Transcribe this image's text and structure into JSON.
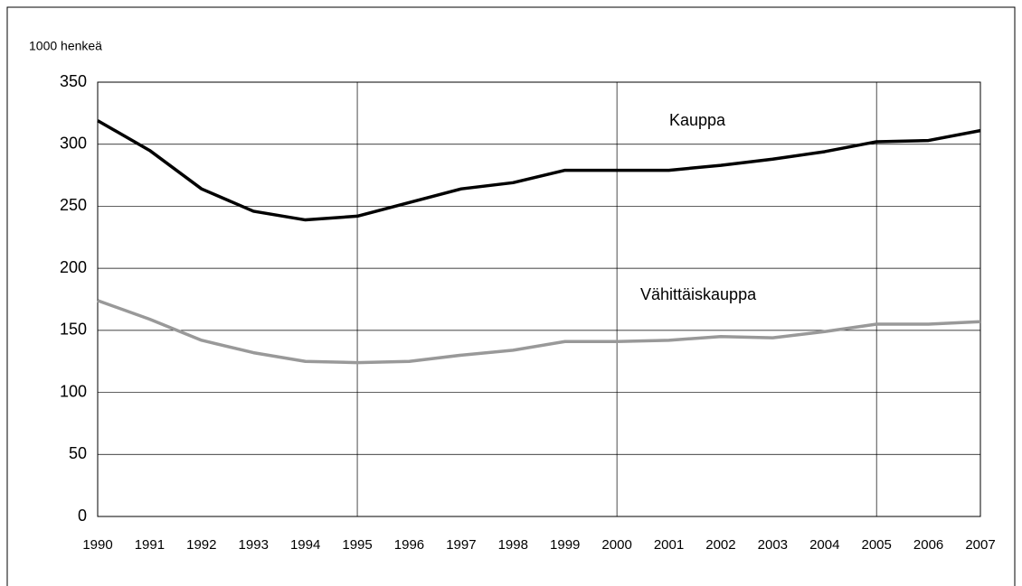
{
  "chart_data": {
    "type": "line",
    "y_axis_label": "1000 henkeä",
    "x": [
      1990,
      1991,
      1992,
      1993,
      1994,
      1995,
      1996,
      1997,
      1998,
      1999,
      2000,
      2001,
      2002,
      2003,
      2004,
      2005,
      2006,
      2007
    ],
    "series": [
      {
        "name": "Kauppa",
        "color": "#000000",
        "values": [
          319,
          295,
          264,
          246,
          239,
          242,
          253,
          264,
          269,
          279,
          279,
          279,
          283,
          288,
          294,
          302,
          303,
          311
        ]
      },
      {
        "name": "Vähittäiskauppa",
        "color": "#999999",
        "values": [
          174,
          159,
          142,
          132,
          125,
          124,
          125,
          130,
          134,
          141,
          141,
          142,
          145,
          144,
          149,
          155,
          155,
          157
        ]
      }
    ],
    "xlim": [
      1990,
      2007
    ],
    "xticks": [
      1990,
      1991,
      1992,
      1993,
      1994,
      1995,
      1996,
      1997,
      1998,
      1999,
      2000,
      2001,
      2002,
      2003,
      2004,
      2005,
      2006,
      2007
    ],
    "xgrid": [
      1995,
      2000,
      2005
    ],
    "ylim": [
      0,
      350
    ],
    "yticks": [
      0,
      50,
      100,
      150,
      200,
      250,
      300,
      350
    ],
    "grid": true
  }
}
